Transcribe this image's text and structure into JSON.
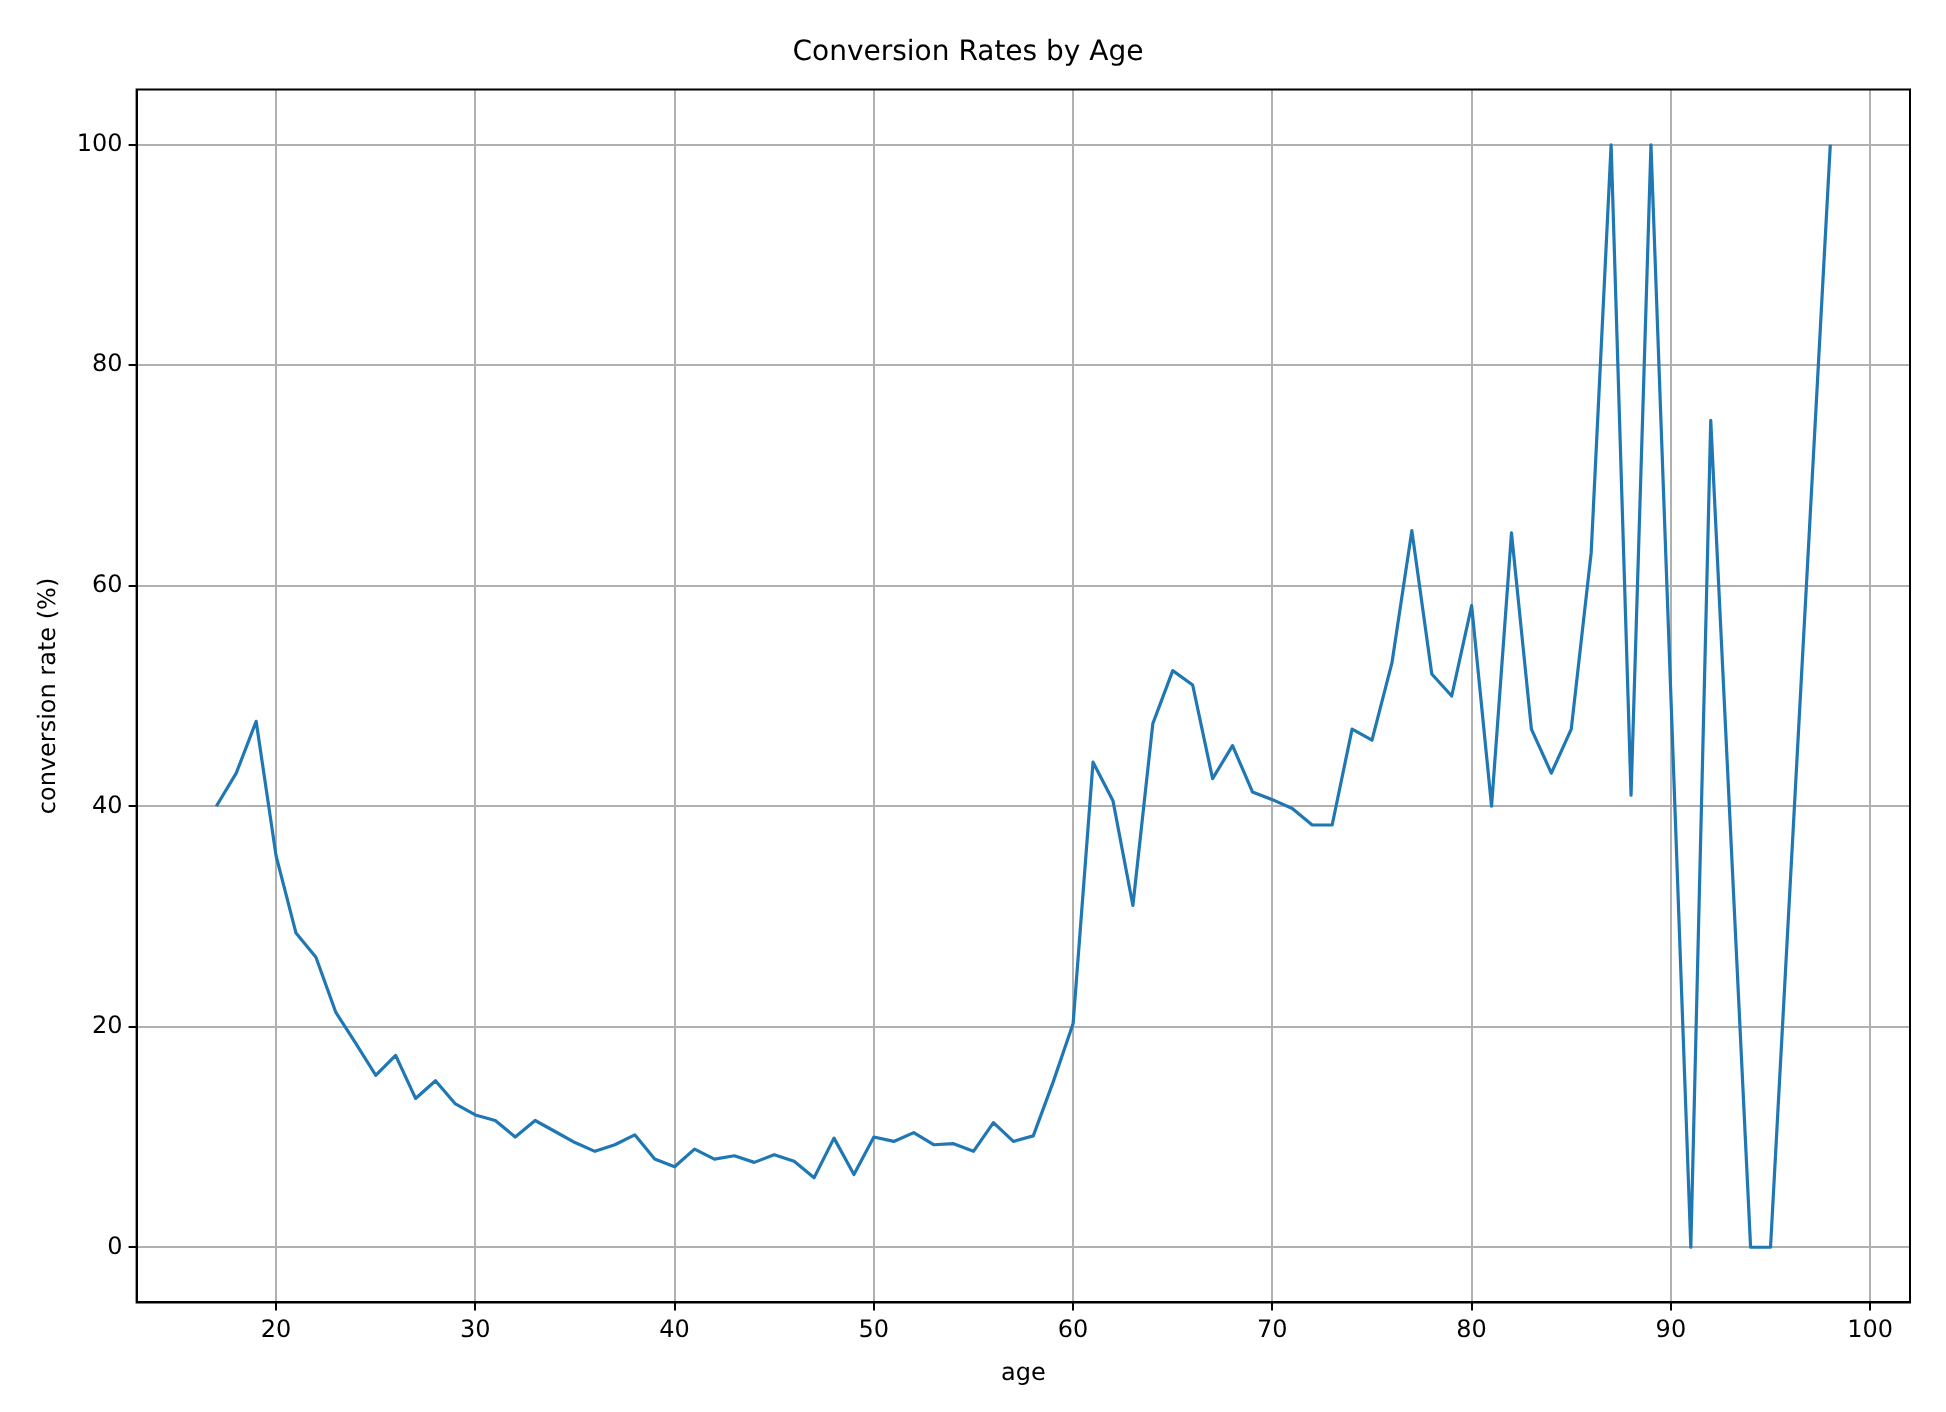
{
  "chart_data": {
    "type": "line",
    "title": "Conversion Rates by Age",
    "xlabel": "age",
    "ylabel": "conversion rate (%)",
    "x": [
      17,
      18,
      19,
      20,
      21,
      22,
      23,
      24,
      25,
      26,
      27,
      28,
      29,
      30,
      31,
      32,
      33,
      34,
      35,
      36,
      37,
      38,
      39,
      40,
      41,
      42,
      43,
      44,
      45,
      46,
      47,
      48,
      49,
      50,
      51,
      52,
      53,
      54,
      55,
      56,
      57,
      58,
      59,
      60,
      61,
      62,
      63,
      64,
      65,
      66,
      67,
      68,
      69,
      70,
      71,
      72,
      73,
      74,
      75,
      76,
      77,
      78,
      79,
      80,
      81,
      82,
      83,
      84,
      85,
      86,
      87,
      88,
      89,
      91,
      92,
      94,
      95,
      98
    ],
    "series": [
      {
        "color": "#1f77b4",
        "values": [
          40,
          43,
          47.7,
          35.5,
          28.5,
          26.3,
          21.3,
          18.5,
          15.6,
          17.4,
          13.5,
          15.1,
          13,
          12,
          11.5,
          10,
          11.5,
          10.5,
          9.5,
          8.7,
          9.3,
          10.2,
          8,
          7.3,
          8.9,
          8,
          8.3,
          7.7,
          8.4,
          7.8,
          6.3,
          9.9,
          6.6,
          10,
          9.6,
          10.4,
          9.3,
          9.4,
          8.7,
          11.3,
          9.6,
          10.1,
          15,
          20.3,
          44,
          40.5,
          31,
          47.5,
          52.3,
          51,
          42.5,
          45.5,
          41.3,
          40.6,
          39.8,
          38.3,
          38.3,
          47,
          46,
          53,
          65,
          52,
          50,
          58.2,
          40,
          64.8,
          47,
          43,
          47,
          63,
          100,
          41,
          100,
          0,
          75,
          0,
          0,
          100
        ]
      }
    ],
    "xlim": [
      13,
      102
    ],
    "xticks": [
      20,
      30,
      40,
      50,
      60,
      70,
      80,
      90,
      100
    ],
    "ylim": [
      -5,
      105
    ],
    "yticks": [
      0,
      20,
      40,
      60,
      80,
      100
    ],
    "grid": true,
    "legend": false,
    "marker": "none",
    "line_style": "solid"
  }
}
